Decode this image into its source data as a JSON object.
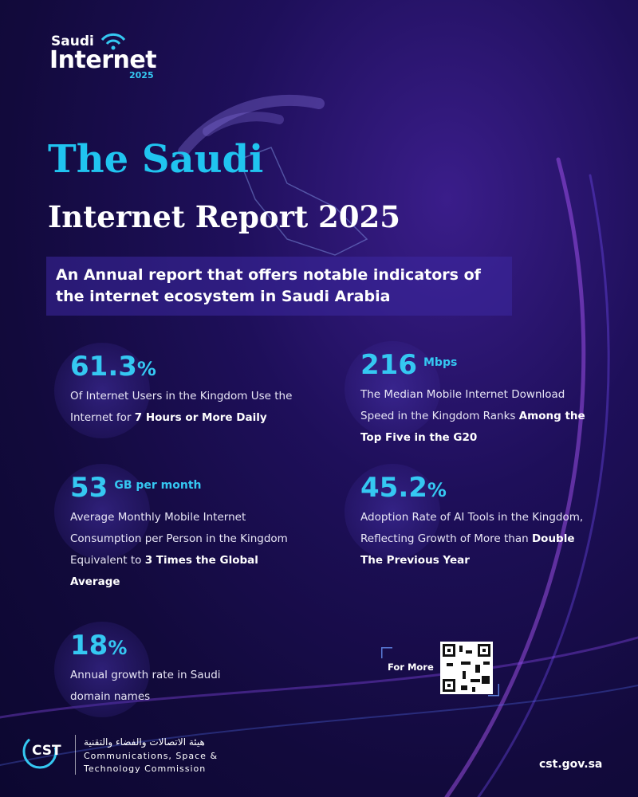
{
  "logo": {
    "line1": "Saudi",
    "line2": "Internet",
    "line3": "2025"
  },
  "header": {
    "title_line1": "The Saudi",
    "title_line2": "Internet Report 2025",
    "subtitle": "An Annual report that offers notable indicators of the internet ecosystem in Saudi Arabia"
  },
  "stats": [
    {
      "value": "61.3",
      "unit": "%",
      "description": "Of Internet Users in the Kingdom Use the Internet for ",
      "highlight": "7 Hours or More Daily"
    },
    {
      "value": "216",
      "unit": "Mbps",
      "description": "The Median Mobile Internet Download Speed in the Kingdom Ranks ",
      "highlight": "Among the Top Five in the G20"
    },
    {
      "value": "53",
      "unit": "GB per month",
      "description": "Average Monthly Mobile Internet Consumption per Person in the Kingdom Equivalent to ",
      "highlight": "3 Times the Global Average"
    },
    {
      "value": "45.2",
      "unit": "%",
      "description": "Adoption Rate of AI Tools in the Kingdom, Reflecting Growth of More than ",
      "highlight": "Double The Previous Year"
    },
    {
      "value": "18",
      "unit": "%",
      "description": "Annual growth rate in Saudi domain names"
    }
  ],
  "qr": {
    "label": "For More"
  },
  "footer": {
    "logo_text": "CST",
    "arabic_name": "هيئة الاتصالات والفضاء والتقنية",
    "english_line1": "Communications, Space &",
    "english_line2": "Technology Commission",
    "website": "cst.gov.sa"
  }
}
